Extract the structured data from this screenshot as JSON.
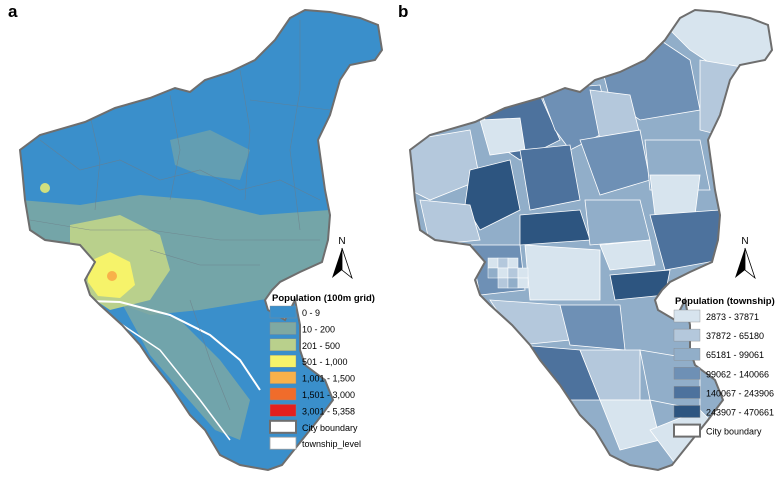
{
  "panels": [
    {
      "letter": "a",
      "legend_title": "Population (100m grid)",
      "legend_items": [
        {
          "label": "0 - 9",
          "color": "#3a8fcb",
          "kind": "fill"
        },
        {
          "label": "10 - 200",
          "color": "#7fa9a2",
          "kind": "fill"
        },
        {
          "label": "201 - 500",
          "color": "#b9d08c",
          "kind": "fill"
        },
        {
          "label": "501 - 1,000",
          "color": "#f6f36a",
          "kind": "fill"
        },
        {
          "label": "1,001 - 1,500",
          "color": "#f8b14a",
          "kind": "fill"
        },
        {
          "label": "1,501 - 3,000",
          "color": "#f06c2b",
          "kind": "fill"
        },
        {
          "label": "3,001 - 5,358",
          "color": "#e3201f",
          "kind": "fill"
        },
        {
          "label": "City boundary",
          "color": "#6e6e6e",
          "kind": "outline-thick"
        },
        {
          "label": "township_level",
          "color": "#9e9e9e",
          "kind": "outline-thin"
        }
      ]
    },
    {
      "letter": "b",
      "legend_title": "Population (township)",
      "legend_items": [
        {
          "label": "2873 - 37871",
          "color": "#d7e4ee",
          "kind": "fill"
        },
        {
          "label": "37872 - 65180",
          "color": "#b4c8dc",
          "kind": "fill"
        },
        {
          "label": "65181 - 99061",
          "color": "#91aec9",
          "kind": "fill"
        },
        {
          "label": "99062 - 140066",
          "color": "#6e90b5",
          "kind": "fill"
        },
        {
          "label": "140067 - 243906",
          "color": "#4d729d",
          "kind": "fill"
        },
        {
          "label": "243907 - 470661",
          "color": "#2d5580",
          "kind": "fill"
        },
        {
          "label": "City boundary",
          "color": "#6e6e6e",
          "kind": "outline-thick"
        }
      ]
    }
  ],
  "north_arrow": {
    "letter": "N"
  },
  "colors": {
    "map_a_base": "#3a8fcb",
    "map_a_urban_mid": "#7fa9a2",
    "map_a_urban_high": "#b9d08c",
    "map_a_core": "#f6f36a",
    "boundary": "#6e6e6e"
  }
}
